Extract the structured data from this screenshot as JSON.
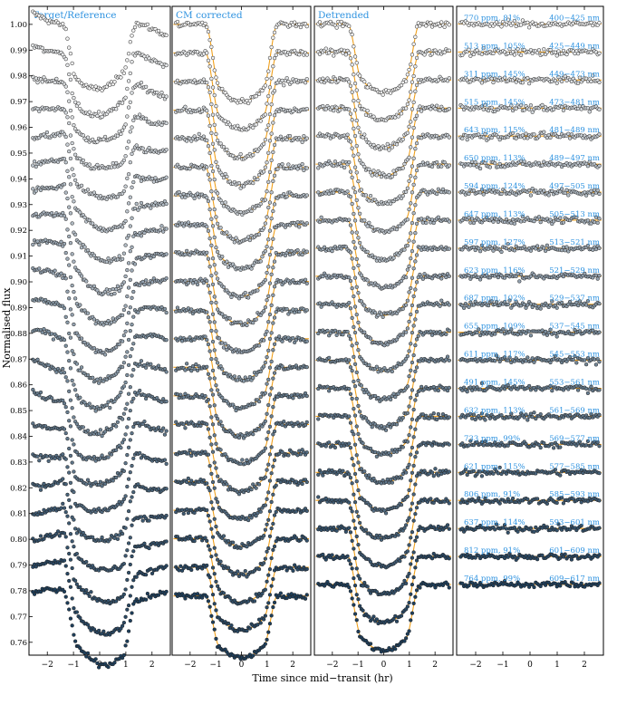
{
  "chart_data": {
    "type": "scatter",
    "figure": "Spectroscopic transit light curves",
    "ylabel": "Normalised flux",
    "xlabel": "Time since mid−transit (hr)",
    "xlim": [
      -2.7,
      2.7
    ],
    "ylim": [
      0.75,
      1.007
    ],
    "xticks": [
      -2,
      -1,
      0,
      1,
      2
    ],
    "xtick_labels": [
      "−2",
      "−1",
      "0",
      "1",
      "2"
    ],
    "yticks": [
      0.75,
      0.76,
      0.77,
      0.78,
      0.79,
      0.8,
      0.81,
      0.82,
      0.83,
      0.84,
      0.85,
      0.86,
      0.87,
      0.88,
      0.89,
      0.9,
      0.91,
      0.92,
      0.93,
      0.94,
      0.95,
      0.96,
      0.97,
      0.98,
      0.99,
      1.0,
      1.01
    ],
    "ytick_labels": [
      "0.75",
      "0.76",
      "0.77",
      "0.78",
      "0.79",
      "0.80",
      "0.81",
      "0.82",
      "0.83",
      "0.84",
      "0.85",
      "0.86",
      "0.87",
      "0.88",
      "0.89",
      "0.90",
      "0.91",
      "0.92",
      "0.93",
      "0.94",
      "0.95",
      "0.96",
      "0.97",
      "0.98",
      "0.99",
      "1.00",
      "1.01"
    ],
    "transit": {
      "t1": -1.4,
      "t2": -0.85,
      "t3": 0.85,
      "t4": 1.4
    },
    "panels": [
      {
        "title": "Target/Reference",
        "kind": "raw",
        "model_line": false,
        "ylim": [
          0.755,
          1.007
        ],
        "baseline_top": 1.0,
        "spacing": 0.0111,
        "depth_top": 0.025,
        "depth_bottom": 0.025
      },
      {
        "title": "CM corrected",
        "kind": "cm",
        "model_line": true,
        "ylim": [
          0.755,
          1.007
        ],
        "baseline_top": 1.0,
        "spacing": 0.0111,
        "depth_top": 0.03,
        "depth_bottom": 0.024
      },
      {
        "title": "Detrended",
        "kind": "detrended",
        "model_line": true,
        "ylim": [
          0.75,
          1.007
        ],
        "baseline_top": 1.0,
        "spacing": 0.0111,
        "depth_top": 0.027,
        "depth_bottom": 0.026
      },
      {
        "title": "",
        "kind": "residuals",
        "model_line": true,
        "ylim": [
          0.75,
          1.007
        ],
        "baseline_top": 1.0,
        "spacing": 0.0111,
        "depth_top": 0,
        "depth_bottom": 0
      }
    ],
    "bins": [
      {
        "rms": "770 ppm, 81%",
        "range": "400−425 nm"
      },
      {
        "rms": "513 ppm, 105%",
        "range": "425−449 nm"
      },
      {
        "rms": "311 ppm, 145%",
        "range": "449−473 nm"
      },
      {
        "rms": "515 ppm, 145%",
        "range": "473−481 nm"
      },
      {
        "rms": "643 ppm, 115%",
        "range": "481−489 nm"
      },
      {
        "rms": "650 ppm, 113%",
        "range": "489−497 nm"
      },
      {
        "rms": "594 ppm, 124%",
        "range": "497−505 nm"
      },
      {
        "rms": "647 ppm, 113%",
        "range": "505−513 nm"
      },
      {
        "rms": "597 ppm, 127%",
        "range": "513−521 nm"
      },
      {
        "rms": "623 ppm, 116%",
        "range": "521−529 nm"
      },
      {
        "rms": "687 ppm, 102%",
        "range": "529−537 nm"
      },
      {
        "rms": "655 ppm, 109%",
        "range": "537−545 nm"
      },
      {
        "rms": "611 ppm, 117%",
        "range": "545−553 nm"
      },
      {
        "rms": "491 ppm, 145%",
        "range": "553−561 nm"
      },
      {
        "rms": "632 ppm, 113%",
        "range": "561−569 nm"
      },
      {
        "rms": "733 ppm, 99%",
        "range": "569−577 nm"
      },
      {
        "rms": "621 ppm, 115%",
        "range": "577−585 nm"
      },
      {
        "rms": "806 ppm, 91%",
        "range": "585−593 nm"
      },
      {
        "rms": "637 ppm, 114%",
        "range": "593−601 nm"
      },
      {
        "rms": "812 ppm, 91%",
        "range": "601−609 nm"
      },
      {
        "rms": "764 ppm, 99%",
        "range": "609−617 nm"
      }
    ],
    "colors": {
      "label_blue": "#2f93e0",
      "model": "#f0a01c",
      "point_light": "#f2f2f2",
      "point_dark": "#1e3f5c",
      "axis": "#000000"
    }
  }
}
